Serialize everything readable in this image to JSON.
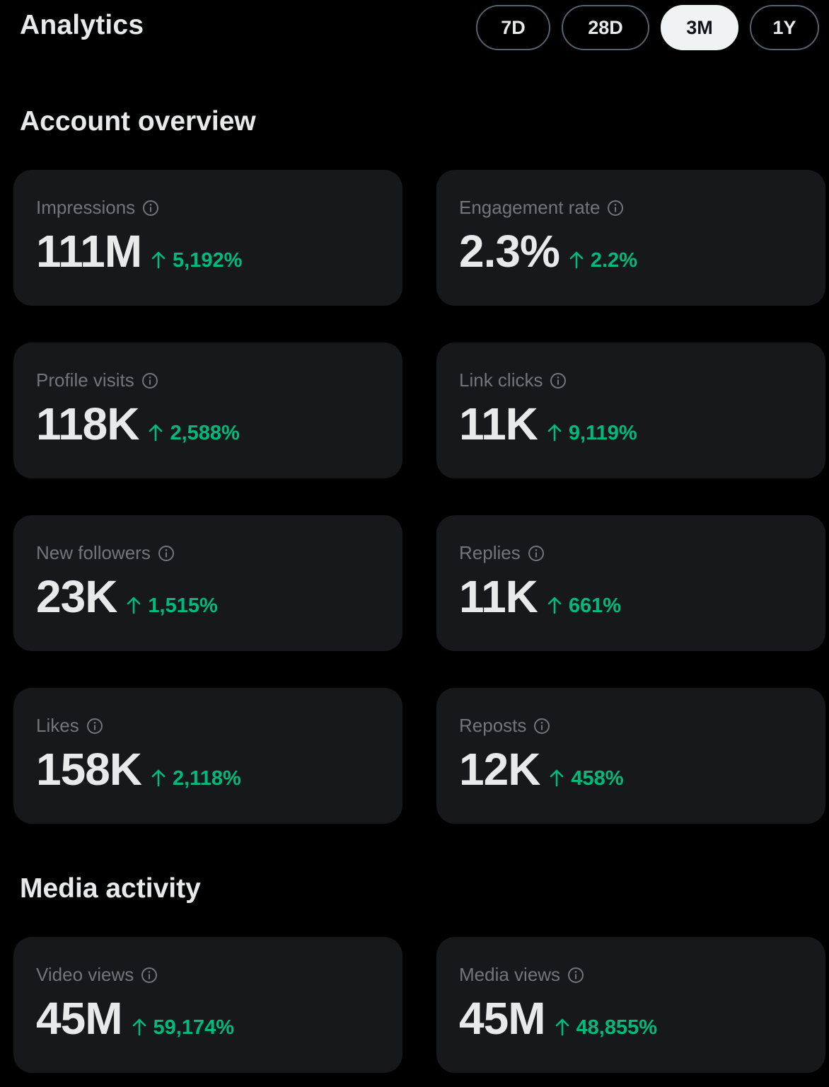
{
  "header": {
    "title": "Analytics",
    "ranges": [
      {
        "label": "7D",
        "active": false
      },
      {
        "label": "28D",
        "active": false
      },
      {
        "label": "3M",
        "active": true
      },
      {
        "label": "1Y",
        "active": false
      }
    ]
  },
  "account_overview": {
    "title": "Account overview",
    "cards": [
      {
        "label": "Impressions",
        "value": "111M",
        "change": "5,192%"
      },
      {
        "label": "Engagement rate",
        "value": "2.3%",
        "change": "2.2%"
      },
      {
        "label": "Profile visits",
        "value": "118K",
        "change": "2,588%"
      },
      {
        "label": "Link clicks",
        "value": "11K",
        "change": "9,119%"
      },
      {
        "label": "New followers",
        "value": "23K",
        "change": "1,515%"
      },
      {
        "label": "Replies",
        "value": "11K",
        "change": "661%"
      },
      {
        "label": "Likes",
        "value": "158K",
        "change": "2,118%"
      },
      {
        "label": "Reposts",
        "value": "12K",
        "change": "458%"
      }
    ]
  },
  "media_activity": {
    "title": "Media activity",
    "cards": [
      {
        "label": "Video views",
        "value": "45M",
        "change": "59,174%"
      },
      {
        "label": "Media views",
        "value": "45M",
        "change": "48,855%"
      }
    ]
  },
  "colors": {
    "background": "#000000",
    "card": "#16181c",
    "text_primary": "#e7e9ea",
    "text_secondary": "#71767b",
    "positive_change": "#00ba7c",
    "active_pill": "#eff3f4"
  },
  "icons": {
    "info": "info-icon",
    "change_direction": "arrow-up-icon"
  }
}
